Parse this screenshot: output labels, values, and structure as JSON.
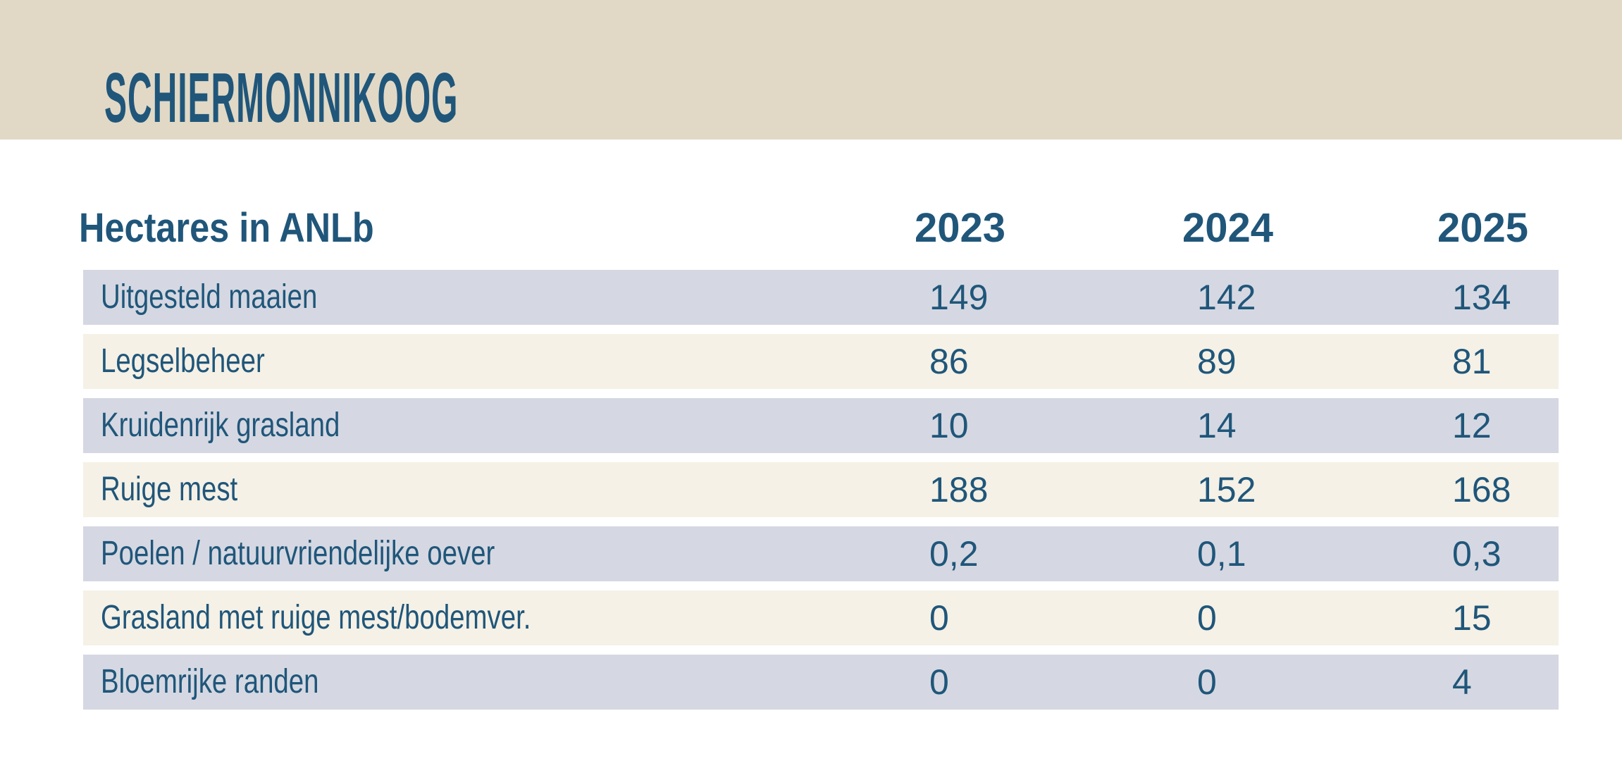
{
  "banner": {
    "title": "SCHIERMONNIKOOG"
  },
  "colors": {
    "banner_bg": "#e1d9c6",
    "text_blue": "#20567a",
    "row_blue_gray": "#d5d8e2",
    "row_cream": "#f5f1e6",
    "page_bg": "#ffffff"
  },
  "table": {
    "header": {
      "label": "Hectares in ANLb",
      "years": [
        "2023",
        "2024",
        "2025"
      ]
    },
    "rows": [
      {
        "label": "Uitgesteld maaien",
        "values": [
          "149",
          "142",
          "134"
        ]
      },
      {
        "label": "Legselbeheer",
        "values": [
          "86",
          "89",
          "81"
        ]
      },
      {
        "label": "Kruidenrijk grasland",
        "values": [
          "10",
          "14",
          "12"
        ]
      },
      {
        "label": "Ruige mest",
        "values": [
          "188",
          "152",
          "168"
        ]
      },
      {
        "label": "Poelen / natuurvriendelijke oever",
        "values": [
          "0,2",
          "0,1",
          "0,3"
        ]
      },
      {
        "label": "Grasland met ruige mest/bodemver.",
        "values": [
          "0",
          "0",
          "15"
        ]
      },
      {
        "label": "Bloemrijke randen",
        "values": [
          "0",
          "0",
          "4"
        ]
      }
    ]
  },
  "chart_data": {
    "type": "table",
    "title": "Hectares in ANLb",
    "region": "SCHIERMONNIKOOG",
    "categories": [
      "Uitgesteld maaien",
      "Legselbeheer",
      "Kruidenrijk grasland",
      "Ruige mest",
      "Poelen / natuurvriendelijke oever",
      "Grasland met ruige mest/bodemver.",
      "Bloemrijke randen"
    ],
    "series": [
      {
        "name": "2023",
        "values": [
          149,
          86,
          10,
          188,
          0.2,
          0,
          0
        ]
      },
      {
        "name": "2024",
        "values": [
          142,
          89,
          14,
          152,
          0.1,
          0,
          0
        ]
      },
      {
        "name": "2025",
        "values": [
          134,
          81,
          12,
          168,
          0.3,
          15,
          4
        ]
      }
    ],
    "layout": "alternating row colors (blue-gray / cream), header row without background, beige title banner at top"
  }
}
